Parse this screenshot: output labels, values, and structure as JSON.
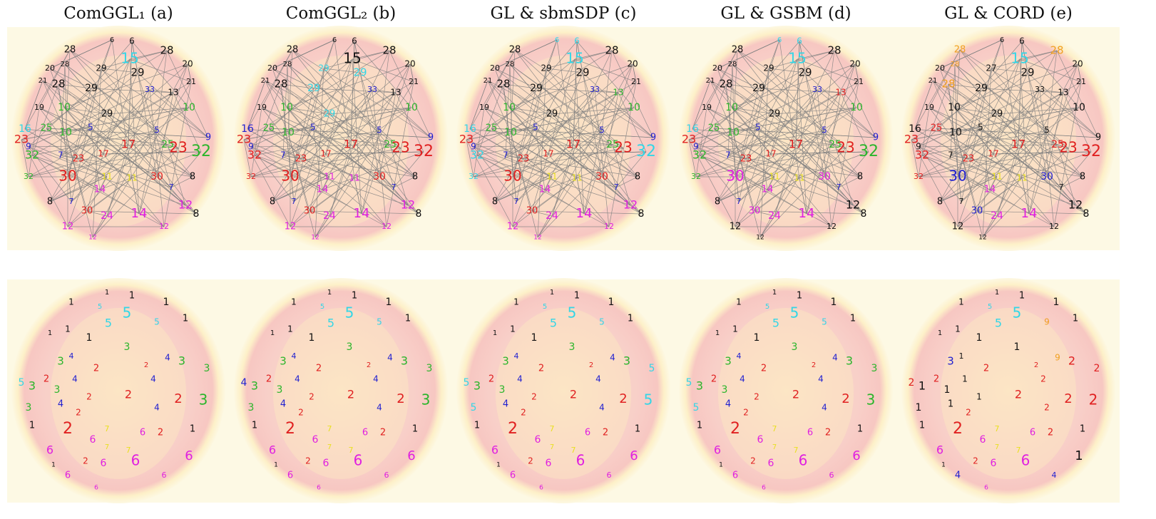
{
  "panels": [
    {
      "title": "ComGGL₁ (a)",
      "top": {
        "labels": [
          "6",
          "6",
          "28",
          "15",
          "28",
          "20",
          "28",
          "29",
          "29",
          "20",
          "21",
          "28",
          "29",
          "13",
          "21",
          "19",
          "10",
          "29",
          "10",
          "16",
          "25",
          "10",
          "5",
          "23",
          "32",
          "7",
          "23",
          "17",
          "17",
          "5",
          "25",
          "23",
          "32",
          "9",
          "32",
          "30",
          "11",
          "11",
          "30",
          "7",
          "8",
          "8",
          "7",
          "14",
          "30",
          "24",
          "14",
          "12",
          "12",
          "12",
          "12",
          "8",
          "33",
          "9"
        ],
        "palette": {
          "6": "#111111",
          "28": "#111111",
          "15": "#33d6e6",
          "29": "#111111",
          "20": "#111111",
          "21": "#111111",
          "13": "#111111",
          "19": "#111111",
          "10": "#2bb52b",
          "16": "#33d6e6",
          "25": "#2bb52b",
          "5": "#2020d0",
          "23": "#e02020",
          "32": "#2bb52b",
          "7": "#2020d0",
          "17": "#e02020",
          "9": "#2020d0",
          "30": "#e02020",
          "11": "#e8e020",
          "8": "#111111",
          "14": "#e020e0",
          "24": "#e020e0",
          "12": "#e020e0",
          "33": "#2020d0"
        }
      },
      "bottom": {
        "labels": [
          "1",
          "1",
          "1",
          "5",
          "5",
          "1",
          "5",
          "5",
          "1",
          "1",
          "1",
          "1",
          "4",
          "3",
          "3",
          "4",
          "3",
          "3",
          "2",
          "2",
          "5",
          "3",
          "2",
          "4",
          "3",
          "4",
          "2",
          "3",
          "2",
          "2",
          "3",
          "4",
          "2",
          "4",
          "2",
          "7",
          "6",
          "1",
          "6",
          "6",
          "6",
          "6",
          "6",
          "2",
          "6",
          "6",
          "6",
          "1",
          "2",
          "7",
          "1",
          "7"
        ],
        "palette": {
          "1": "#111111",
          "5": "#33d6e6",
          "4": "#2020d0",
          "3": "#2bb52b",
          "2": "#e02020",
          "7": "#e8e020",
          "6": "#e020e0"
        }
      }
    },
    {
      "title": "ComGGL₂ (b)",
      "top": {
        "labels": [
          "6",
          "6",
          "28",
          "15",
          "28",
          "20",
          "28",
          "29",
          "29",
          "20",
          "21",
          "28",
          "29",
          "13",
          "21",
          "19",
          "10",
          "29",
          "10",
          "16",
          "25",
          "10",
          "5",
          "23",
          "32",
          "7",
          "23",
          "17",
          "17",
          "5",
          "25",
          "23",
          "32",
          "9",
          "32",
          "30",
          "11",
          "11",
          "30",
          "7",
          "8",
          "8",
          "7",
          "14",
          "30",
          "24",
          "14",
          "12",
          "12",
          "12",
          "12",
          "8",
          "33",
          "9"
        ],
        "palette": {
          "6": "#111111",
          "28": "#111111",
          "15": "#111111",
          "29": "#33d6e6",
          "20": "#111111",
          "21": "#111111",
          "13": "#111111",
          "19": "#111111",
          "10": "#2bb52b",
          "16": "#2020d0",
          "25": "#2bb52b",
          "5": "#2020d0",
          "23": "#e02020",
          "32": "#e02020",
          "7": "#2020d0",
          "17": "#e02020",
          "9": "#2020d0",
          "30": "#e02020",
          "11": "#e020e0",
          "8": "#111111",
          "14": "#e020e0",
          "24": "#e020e0",
          "12": "#e020e0",
          "33": "#2020d0"
        }
      },
      "bottom": {
        "labels": [
          "1",
          "1",
          "1",
          "5",
          "5",
          "1",
          "5",
          "5",
          "1",
          "1",
          "1",
          "1",
          "4",
          "3",
          "3",
          "4",
          "3",
          "3",
          "2",
          "2",
          "4",
          "3",
          "2",
          "4",
          "3",
          "4",
          "2",
          "3",
          "2",
          "2",
          "3",
          "4",
          "2",
          "4",
          "2",
          "7",
          "6",
          "1",
          "6",
          "6",
          "6",
          "6",
          "6",
          "2",
          "6",
          "6",
          "6",
          "1",
          "2",
          "7",
          "1",
          "7"
        ],
        "palette": {
          "1": "#111111",
          "5": "#33d6e6",
          "4": "#2020d0",
          "3": "#2bb52b",
          "2": "#e02020",
          "7": "#e8e020",
          "6": "#e020e0"
        }
      }
    },
    {
      "title": "GL & sbmSDP (c)",
      "top": {
        "labels": [
          "6",
          "6",
          "28",
          "15",
          "28",
          "20",
          "28",
          "29",
          "29",
          "20",
          "21",
          "28",
          "29",
          "13",
          "21",
          "19",
          "10",
          "29",
          "10",
          "16",
          "25",
          "10",
          "5",
          "23",
          "32",
          "7",
          "23",
          "17",
          "17",
          "5",
          "25",
          "23",
          "32",
          "9",
          "32",
          "30",
          "11",
          "11",
          "30",
          "7",
          "8",
          "8",
          "7",
          "14",
          "30",
          "24",
          "14",
          "12",
          "12",
          "12",
          "12",
          "8",
          "33",
          "9"
        ],
        "palette": {
          "6": "#33d6e6",
          "28": "#111111",
          "15": "#33d6e6",
          "29": "#111111",
          "20": "#111111",
          "21": "#111111",
          "13": "#2bb52b",
          "19": "#111111",
          "10": "#2bb52b",
          "16": "#33d6e6",
          "25": "#2bb52b",
          "5": "#2020d0",
          "23": "#e02020",
          "32": "#33d6e6",
          "7": "#2020d0",
          "17": "#e02020",
          "9": "#2020d0",
          "30": "#e02020",
          "11": "#e8e020",
          "8": "#111111",
          "14": "#e020e0",
          "24": "#e020e0",
          "12": "#e020e0",
          "33": "#2020d0"
        }
      },
      "bottom": {
        "labels": [
          "1",
          "1",
          "1",
          "5",
          "5",
          "1",
          "5",
          "5",
          "1",
          "1",
          "1",
          "1",
          "4",
          "3",
          "3",
          "4",
          "3",
          "5",
          "2",
          "2",
          "5",
          "3",
          "2",
          "4",
          "3",
          "4",
          "2",
          "5",
          "2",
          "2",
          "5",
          "4",
          "2",
          "4",
          "2",
          "7",
          "6",
          "1",
          "6",
          "6",
          "6",
          "6",
          "6",
          "2",
          "6",
          "6",
          "6",
          "1",
          "2",
          "7",
          "1",
          "7"
        ],
        "palette": {
          "1": "#111111",
          "5": "#33d6e6",
          "4": "#2020d0",
          "3": "#2bb52b",
          "2": "#e02020",
          "7": "#e8e020",
          "6": "#e020e0"
        }
      }
    },
    {
      "title": "GL & GSBM (d)",
      "top": {
        "labels": [
          "6",
          "6",
          "28",
          "15",
          "28",
          "20",
          "28",
          "29",
          "29",
          "20",
          "21",
          "28",
          "29",
          "13",
          "21",
          "19",
          "10",
          "29",
          "10",
          "16",
          "25",
          "10",
          "5",
          "23",
          "32",
          "7",
          "23",
          "17",
          "17",
          "5",
          "25",
          "23",
          "32",
          "9",
          "32",
          "30",
          "11",
          "11",
          "30",
          "7",
          "8",
          "8",
          "7",
          "14",
          "30",
          "24",
          "14",
          "12",
          "12",
          "12",
          "12",
          "8",
          "33",
          "9"
        ],
        "palette": {
          "6": "#33d6e6",
          "28": "#111111",
          "15": "#33d6e6",
          "29": "#111111",
          "20": "#111111",
          "21": "#111111",
          "13": "#e02020",
          "19": "#111111",
          "10": "#2bb52b",
          "16": "#33d6e6",
          "25": "#2bb52b",
          "5": "#2020d0",
          "23": "#e02020",
          "32": "#2bb52b",
          "7": "#2020d0",
          "17": "#e02020",
          "9": "#2020d0",
          "30": "#e020e0",
          "11": "#e8e020",
          "8": "#111111",
          "14": "#e020e0",
          "24": "#e020e0",
          "12": "#111111",
          "33": "#2020d0"
        }
      },
      "bottom": {
        "labels": [
          "1",
          "1",
          "1",
          "5",
          "5",
          "1",
          "5",
          "5",
          "1",
          "1",
          "1",
          "1",
          "4",
          "3",
          "3",
          "4",
          "3",
          "3",
          "2",
          "2",
          "5",
          "3",
          "2",
          "4",
          "3",
          "4",
          "2",
          "3",
          "2",
          "2",
          "5",
          "4",
          "2",
          "4",
          "2",
          "7",
          "6",
          "1",
          "6",
          "6",
          "6",
          "6",
          "6",
          "2",
          "6",
          "6",
          "6",
          "1",
          "2",
          "7",
          "1",
          "7"
        ],
        "palette": {
          "1": "#111111",
          "5": "#33d6e6",
          "4": "#2020d0",
          "3": "#2bb52b",
          "2": "#e02020",
          "7": "#e8e020",
          "6": "#e020e0"
        }
      }
    },
    {
      "title": "GL & CORD (e)",
      "top": {
        "labels": [
          "6",
          "6",
          "28",
          "15",
          "28",
          "20",
          "28",
          "27",
          "29",
          "20",
          "21",
          "28",
          "29",
          "13",
          "21",
          "19",
          "10",
          "29",
          "10",
          "16",
          "25",
          "10",
          "5",
          "23",
          "32",
          "7",
          "23",
          "17",
          "17",
          "5",
          "25",
          "23",
          "32",
          "9",
          "32",
          "30",
          "11",
          "11",
          "30",
          "7",
          "8",
          "8",
          "7",
          "14",
          "30",
          "24",
          "14",
          "12",
          "12",
          "12",
          "12",
          "8",
          "33",
          "9"
        ],
        "palette": {
          "6": "#111111",
          "28": "#f0a020",
          "15": "#33d6e6",
          "27": "#111111",
          "29": "#111111",
          "20": "#111111",
          "21": "#111111",
          "13": "#111111",
          "19": "#111111",
          "10": "#111111",
          "16": "#111111",
          "25": "#e02020",
          "5": "#111111",
          "23": "#e02020",
          "32": "#e02020",
          "7": "#111111",
          "17": "#e02020",
          "9": "#111111",
          "30": "#2020d0",
          "11": "#e8e020",
          "8": "#111111",
          "14": "#e020e0",
          "24": "#e020e0",
          "12": "#111111",
          "33": "#111111"
        }
      },
      "bottom": {
        "labels": [
          "1",
          "1",
          "1",
          "5",
          "5",
          "1",
          "5",
          "9",
          "1",
          "1",
          "1",
          "1",
          "1",
          "3",
          "1",
          "9",
          "2",
          "2",
          "2",
          "2",
          "2",
          "1",
          "2",
          "1",
          "1",
          "2",
          "2",
          "2",
          "2",
          "1",
          "1",
          "1",
          "2",
          "2",
          "2",
          "7",
          "6",
          "1",
          "6",
          "6",
          "6",
          "6",
          "1",
          "2",
          "4",
          "4",
          "6",
          "1",
          "2",
          "7",
          "1",
          "7"
        ],
        "palette": {
          "1": "#111111",
          "5": "#33d6e6",
          "9": "#f0a020",
          "3": "#2020d0",
          "2": "#e02020",
          "7": "#e8e020",
          "6": "#e020e0",
          "4": "#2020d0"
        }
      }
    }
  ]
}
